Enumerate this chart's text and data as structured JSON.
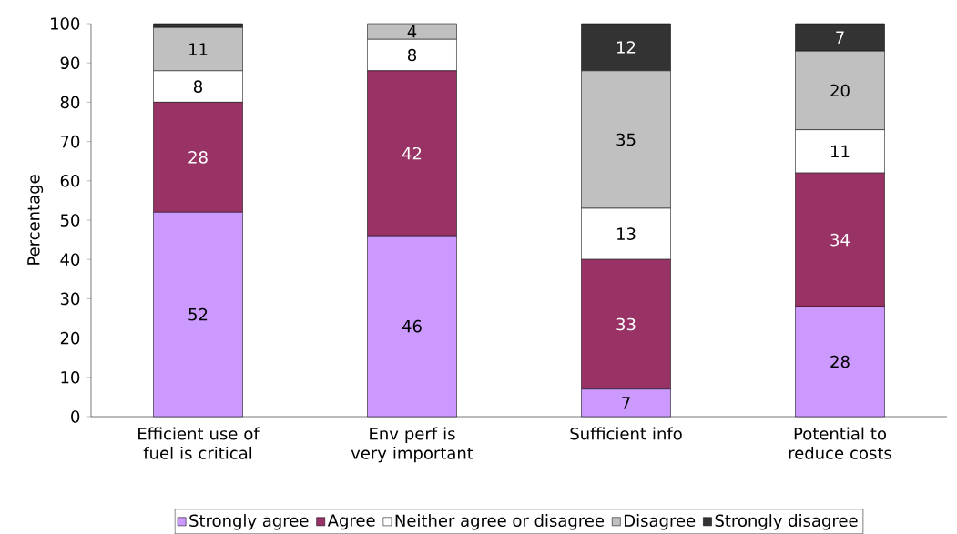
{
  "chart_data": {
    "type": "bar",
    "stacked": true,
    "ylabel": "Percentage",
    "categories": [
      "Efficient use of fuel is critical",
      "Env perf is very important",
      "Sufficient info",
      "Potential to reduce costs"
    ],
    "series": [
      {
        "name": "Strongly agree",
        "color": "#cc99ff",
        "values": [
          52,
          46,
          7,
          28
        ],
        "value_labels": [
          "52",
          "46",
          "7",
          "28"
        ]
      },
      {
        "name": "Agree",
        "color": "#993366",
        "values": [
          28,
          42,
          33,
          34
        ],
        "value_labels": [
          "28",
          "42",
          "33",
          "34"
        ]
      },
      {
        "name": "Neither agree or disagree",
        "color": "#ffffff",
        "values": [
          8,
          8,
          13,
          11
        ],
        "value_labels": [
          "8",
          "8",
          "13",
          "11"
        ]
      },
      {
        "name": "Disagree",
        "color": "#c0c0c0",
        "values": [
          11,
          4,
          35,
          20
        ],
        "value_labels": [
          "11",
          "4",
          "35",
          "20"
        ]
      },
      {
        "name": "Strongly disagree",
        "color": "#333333",
        "values": [
          1,
          0,
          12,
          7
        ],
        "value_labels": [
          null,
          null,
          "12",
          "7"
        ]
      }
    ],
    "ylim": [
      0,
      100
    ],
    "yticks": [
      0,
      10,
      20,
      30,
      40,
      50,
      60,
      70,
      80,
      90,
      100
    ],
    "grid": false,
    "legend": "bottom"
  }
}
